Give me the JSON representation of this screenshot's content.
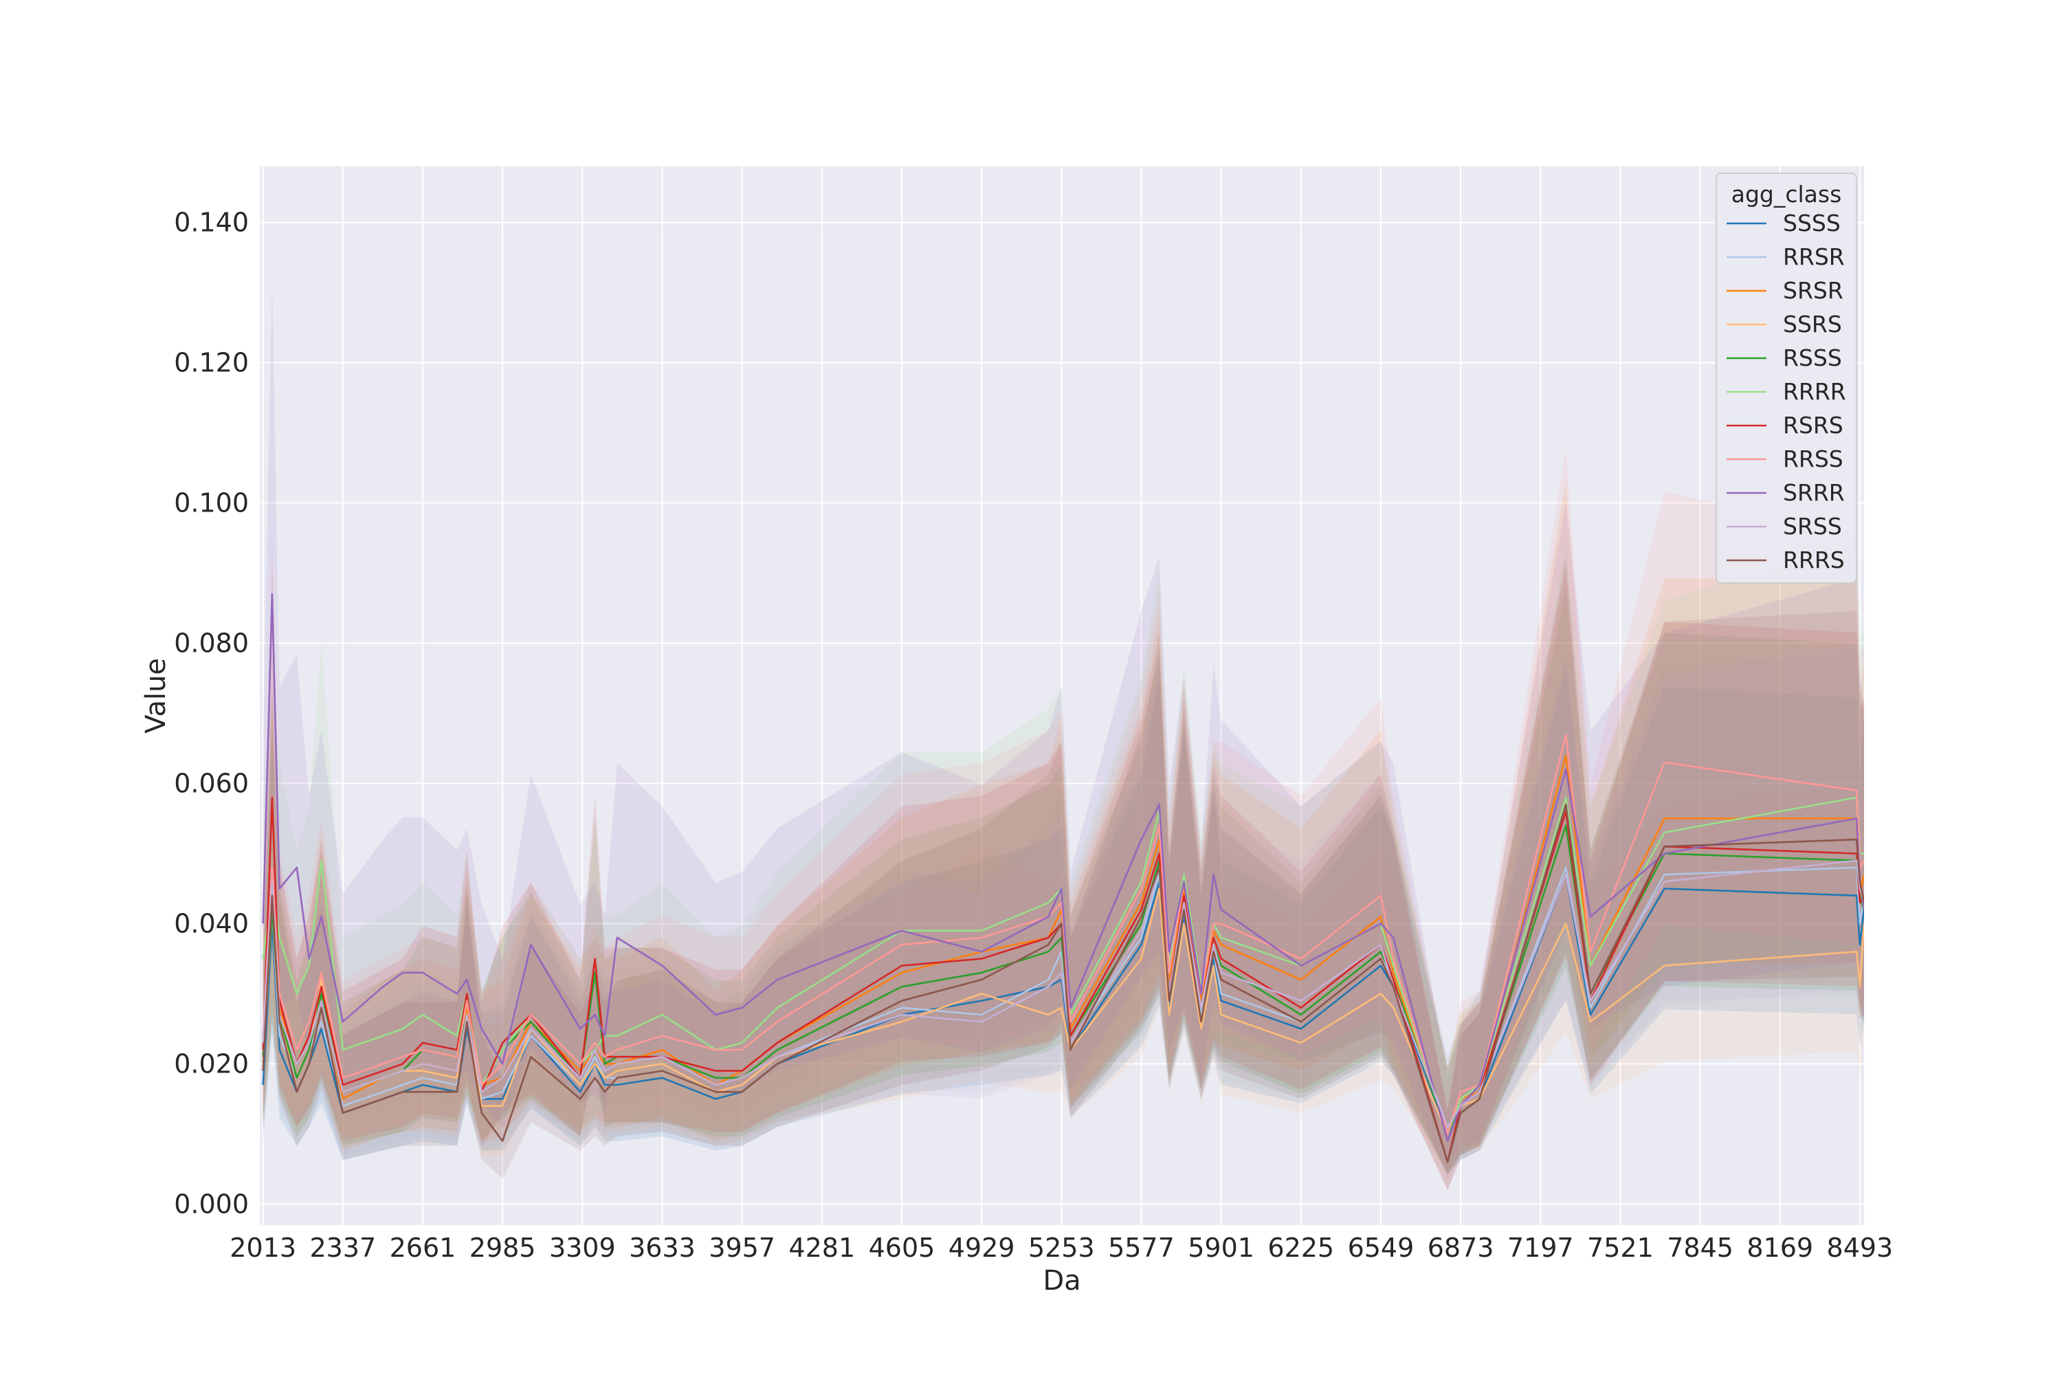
{
  "chart_data": {
    "type": "line",
    "xlabel": "Da",
    "ylabel": "Value",
    "xlim": [
      2000,
      8510
    ],
    "ylim": [
      -0.003,
      0.148
    ],
    "x_ticks": [
      2013,
      2337,
      2661,
      2985,
      3309,
      3633,
      3957,
      4281,
      4605,
      4929,
      5253,
      5577,
      5901,
      6225,
      6549,
      6873,
      7197,
      7521,
      7845,
      8169,
      8493
    ],
    "y_ticks": [
      0.0,
      0.02,
      0.04,
      0.06,
      0.08,
      0.1,
      0.12,
      0.14
    ],
    "y_tick_labels": [
      "0.000",
      "0.020",
      "0.040",
      "0.060",
      "0.080",
      "0.100",
      "0.120",
      "0.140"
    ],
    "grid": true,
    "legend": {
      "title": "agg_class",
      "position": "top-right"
    },
    "colors": {
      "background": "#eaeaf2",
      "grid": "#ffffff"
    },
    "x": [
      2013,
      2050,
      2080,
      2150,
      2200,
      2250,
      2337,
      2500,
      2580,
      2661,
      2800,
      2840,
      2900,
      2985,
      3100,
      3300,
      3360,
      3400,
      3450,
      3633,
      3850,
      3957,
      4100,
      4605,
      4929,
      5200,
      5253,
      5290,
      5577,
      5650,
      5690,
      5750,
      5820,
      5870,
      5901,
      6225,
      6549,
      6600,
      6820,
      6873,
      6950,
      7300,
      7400,
      7700,
      8480,
      8493,
      8510
    ],
    "series": [
      {
        "name": "SSSS",
        "color": "#1f77b4",
        "values": [
          0.017,
          0.04,
          0.022,
          0.016,
          0.02,
          0.025,
          0.013,
          0.015,
          0.016,
          0.017,
          0.016,
          0.025,
          0.015,
          0.015,
          0.024,
          0.016,
          0.02,
          0.017,
          0.017,
          0.018,
          0.015,
          0.016,
          0.02,
          0.027,
          0.029,
          0.031,
          0.032,
          0.022,
          0.037,
          0.046,
          0.028,
          0.041,
          0.026,
          0.035,
          0.029,
          0.025,
          0.034,
          0.031,
          0.01,
          0.013,
          0.015,
          0.047,
          0.027,
          0.045,
          0.044,
          0.037,
          0.042
        ]
      },
      {
        "name": "RRSR",
        "color": "#aec7e8",
        "values": [
          0.02,
          0.042,
          0.024,
          0.018,
          0.022,
          0.026,
          0.014,
          0.016,
          0.017,
          0.018,
          0.017,
          0.026,
          0.015,
          0.016,
          0.024,
          0.017,
          0.021,
          0.018,
          0.018,
          0.019,
          0.016,
          0.017,
          0.021,
          0.028,
          0.027,
          0.032,
          0.036,
          0.023,
          0.038,
          0.047,
          0.029,
          0.042,
          0.027,
          0.036,
          0.03,
          0.026,
          0.035,
          0.032,
          0.011,
          0.014,
          0.016,
          0.048,
          0.028,
          0.047,
          0.048,
          0.04,
          0.044
        ]
      },
      {
        "name": "SRSR",
        "color": "#ff7f0e",
        "values": [
          0.022,
          0.045,
          0.028,
          0.02,
          0.024,
          0.03,
          0.015,
          0.018,
          0.019,
          0.02,
          0.019,
          0.028,
          0.017,
          0.018,
          0.026,
          0.019,
          0.022,
          0.02,
          0.02,
          0.022,
          0.017,
          0.019,
          0.023,
          0.033,
          0.036,
          0.038,
          0.042,
          0.025,
          0.043,
          0.052,
          0.032,
          0.045,
          0.029,
          0.039,
          0.037,
          0.032,
          0.041,
          0.033,
          0.01,
          0.015,
          0.016,
          0.064,
          0.034,
          0.055,
          0.055,
          0.044,
          0.047
        ]
      },
      {
        "name": "SSRS",
        "color": "#ffbb78",
        "values": [
          0.02,
          0.042,
          0.026,
          0.018,
          0.022,
          0.032,
          0.016,
          0.018,
          0.019,
          0.019,
          0.018,
          0.027,
          0.014,
          0.014,
          0.025,
          0.017,
          0.02,
          0.018,
          0.019,
          0.02,
          0.016,
          0.017,
          0.021,
          0.026,
          0.03,
          0.027,
          0.028,
          0.022,
          0.035,
          0.045,
          0.027,
          0.04,
          0.025,
          0.034,
          0.027,
          0.023,
          0.03,
          0.028,
          0.01,
          0.014,
          0.015,
          0.04,
          0.026,
          0.034,
          0.036,
          0.031,
          0.04
        ]
      },
      {
        "name": "RSSS",
        "color": "#2ca02c",
        "values": [
          0.021,
          0.042,
          0.027,
          0.018,
          0.022,
          0.03,
          0.016,
          0.018,
          0.019,
          0.022,
          0.021,
          0.027,
          0.017,
          0.022,
          0.026,
          0.018,
          0.033,
          0.02,
          0.021,
          0.021,
          0.018,
          0.018,
          0.022,
          0.031,
          0.033,
          0.036,
          0.038,
          0.024,
          0.04,
          0.049,
          0.03,
          0.043,
          0.028,
          0.037,
          0.034,
          0.027,
          0.036,
          0.032,
          0.01,
          0.014,
          0.016,
          0.054,
          0.03,
          0.05,
          0.049,
          0.044,
          0.042
        ]
      },
      {
        "name": "RRRR",
        "color": "#98df8a",
        "values": [
          0.035,
          0.045,
          0.038,
          0.03,
          0.034,
          0.049,
          0.022,
          0.024,
          0.025,
          0.027,
          0.024,
          0.03,
          0.017,
          0.022,
          0.027,
          0.02,
          0.022,
          0.024,
          0.024,
          0.027,
          0.022,
          0.023,
          0.028,
          0.039,
          0.039,
          0.043,
          0.045,
          0.027,
          0.046,
          0.056,
          0.034,
          0.047,
          0.031,
          0.04,
          0.038,
          0.034,
          0.04,
          0.034,
          0.01,
          0.015,
          0.017,
          0.058,
          0.034,
          0.053,
          0.058,
          0.05,
          0.05
        ]
      },
      {
        "name": "RSRS",
        "color": "#d62728",
        "values": [
          0.022,
          0.058,
          0.029,
          0.02,
          0.024,
          0.031,
          0.017,
          0.019,
          0.02,
          0.023,
          0.022,
          0.03,
          0.016,
          0.023,
          0.027,
          0.018,
          0.035,
          0.021,
          0.021,
          0.021,
          0.019,
          0.019,
          0.023,
          0.034,
          0.035,
          0.038,
          0.04,
          0.024,
          0.042,
          0.05,
          0.03,
          0.044,
          0.028,
          0.038,
          0.035,
          0.028,
          0.037,
          0.032,
          0.006,
          0.014,
          0.016,
          0.056,
          0.029,
          0.051,
          0.05,
          0.043,
          0.044
        ]
      },
      {
        "name": "RRSS",
        "color": "#ff9896",
        "values": [
          0.024,
          0.048,
          0.03,
          0.022,
          0.026,
          0.033,
          0.018,
          0.02,
          0.021,
          0.022,
          0.021,
          0.029,
          0.017,
          0.02,
          0.027,
          0.02,
          0.023,
          0.021,
          0.022,
          0.024,
          0.022,
          0.022,
          0.026,
          0.037,
          0.038,
          0.041,
          0.043,
          0.026,
          0.045,
          0.054,
          0.033,
          0.046,
          0.03,
          0.04,
          0.04,
          0.035,
          0.044,
          0.035,
          0.01,
          0.016,
          0.017,
          0.067,
          0.036,
          0.063,
          0.059,
          0.048,
          0.049
        ]
      },
      {
        "name": "SRRR",
        "color": "#9467bd",
        "values": [
          0.04,
          0.087,
          0.045,
          0.048,
          0.035,
          0.041,
          0.026,
          0.031,
          0.033,
          0.033,
          0.03,
          0.032,
          0.025,
          0.02,
          0.037,
          0.025,
          0.027,
          0.024,
          0.038,
          0.034,
          0.027,
          0.028,
          0.032,
          0.039,
          0.036,
          0.041,
          0.045,
          0.028,
          0.052,
          0.057,
          0.036,
          0.046,
          0.03,
          0.047,
          0.042,
          0.034,
          0.04,
          0.038,
          0.009,
          0.014,
          0.017,
          0.062,
          0.041,
          0.05,
          0.055,
          0.046,
          0.042
        ]
      },
      {
        "name": "SRSS",
        "color": "#c5b0d5",
        "values": [
          0.023,
          0.046,
          0.027,
          0.02,
          0.023,
          0.029,
          0.016,
          0.018,
          0.019,
          0.02,
          0.019,
          0.027,
          0.016,
          0.018,
          0.025,
          0.018,
          0.022,
          0.019,
          0.02,
          0.021,
          0.017,
          0.018,
          0.021,
          0.027,
          0.026,
          0.031,
          0.033,
          0.023,
          0.039,
          0.048,
          0.03,
          0.043,
          0.028,
          0.037,
          0.033,
          0.029,
          0.037,
          0.031,
          0.011,
          0.014,
          0.016,
          0.047,
          0.029,
          0.046,
          0.049,
          0.045,
          0.043
        ]
      },
      {
        "name": "RRRS",
        "color": "#8c564b",
        "values": [
          0.019,
          0.044,
          0.026,
          0.016,
          0.02,
          0.028,
          0.013,
          0.015,
          0.016,
          0.016,
          0.016,
          0.026,
          0.013,
          0.009,
          0.021,
          0.015,
          0.018,
          0.016,
          0.018,
          0.019,
          0.016,
          0.016,
          0.02,
          0.029,
          0.032,
          0.037,
          0.04,
          0.022,
          0.041,
          0.048,
          0.029,
          0.042,
          0.026,
          0.036,
          0.032,
          0.026,
          0.035,
          0.031,
          0.006,
          0.013,
          0.015,
          0.057,
          0.03,
          0.051,
          0.052,
          0.046,
          0.043
        ]
      }
    ]
  }
}
